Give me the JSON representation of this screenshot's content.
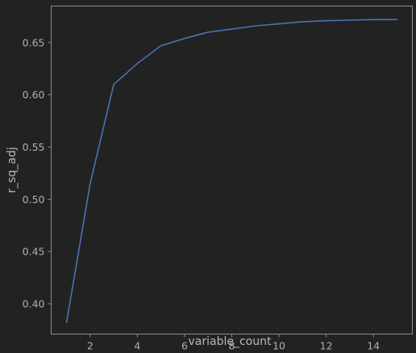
{
  "chart_data": {
    "type": "line",
    "title": "",
    "xlabel": "variable_count",
    "ylabel": "r_sq_adj",
    "xlim": [
      0.35,
      15.65
    ],
    "ylim": [
      0.371,
      0.685
    ],
    "x_ticks": [
      2,
      4,
      6,
      8,
      10,
      12,
      14
    ],
    "y_ticks": [
      0.4,
      0.45,
      0.5,
      0.55,
      0.6,
      0.65
    ],
    "x_tick_labels": [
      "2",
      "4",
      "6",
      "8",
      "10",
      "12",
      "14"
    ],
    "y_tick_labels": [
      "0.40",
      "0.45",
      "0.50",
      "0.55",
      "0.60",
      "0.65"
    ],
    "grid": false,
    "series": [
      {
        "x": [
          1,
          2,
          3,
          4,
          5,
          6,
          7,
          8,
          9,
          10,
          11,
          12,
          13,
          14,
          15
        ],
        "values": [
          0.382,
          0.515,
          0.61,
          0.63,
          0.647,
          0.654,
          0.66,
          0.663,
          0.666,
          0.668,
          0.67,
          0.671,
          0.6715,
          0.672,
          0.672
        ],
        "color": "#4c72b0"
      }
    ]
  },
  "colors": {
    "background": "#222222",
    "frame": "#8c8c8c",
    "text": "#b0b0b0"
  }
}
